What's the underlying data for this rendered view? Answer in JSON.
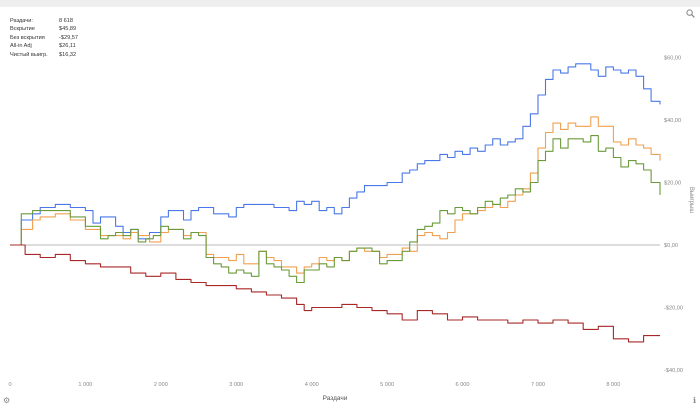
{
  "stats": [
    {
      "label": "Раздачи:",
      "value": "8 618"
    },
    {
      "label": "Вскрытие",
      "value": "$45,89"
    },
    {
      "label": "Без вскрытия",
      "value": "-$29,57"
    },
    {
      "label": "All-in Adj",
      "value": "$26,11"
    },
    {
      "label": "Чистый выигр.",
      "value": "$16,32"
    }
  ],
  "chart_data": {
    "type": "line",
    "xlabel": "Раздачи",
    "ylabel": "Выигрыш",
    "xlim": [
      0,
      8618
    ],
    "ylim": [
      -40,
      60
    ],
    "x_ticks": [
      {
        "v": 0,
        "label": "0"
      },
      {
        "v": 1000,
        "label": "1 000"
      },
      {
        "v": 2000,
        "label": "2 000"
      },
      {
        "v": 3000,
        "label": "3 000"
      },
      {
        "v": 4000,
        "label": "4 000"
      },
      {
        "v": 5000,
        "label": "5 000"
      },
      {
        "v": 6000,
        "label": "6 000"
      },
      {
        "v": 7000,
        "label": "7 000"
      },
      {
        "v": 8000,
        "label": "8 000"
      }
    ],
    "y_ticks": [
      {
        "v": 60,
        "label": "$60,00"
      },
      {
        "v": 40,
        "label": "$40,00"
      },
      {
        "v": 20,
        "label": "$20,00"
      },
      {
        "v": 0,
        "label": "$0,00"
      },
      {
        "v": -20,
        "label": "-$20,00"
      },
      {
        "v": -40,
        "label": "-$40,00"
      }
    ],
    "series": [
      {
        "color": "#4a78e8",
        "points": [
          [
            0,
            0
          ],
          [
            150,
            8
          ],
          [
            300,
            10
          ],
          [
            400,
            12
          ],
          [
            600,
            13
          ],
          [
            800,
            12
          ],
          [
            1000,
            11
          ],
          [
            1100,
            7
          ],
          [
            1200,
            9
          ],
          [
            1400,
            6
          ],
          [
            1500,
            4
          ],
          [
            1600,
            5
          ],
          [
            1700,
            2
          ],
          [
            1850,
            4
          ],
          [
            2000,
            9
          ],
          [
            2100,
            11
          ],
          [
            2300,
            8
          ],
          [
            2400,
            11
          ],
          [
            2500,
            12
          ],
          [
            2700,
            10
          ],
          [
            2800,
            10
          ],
          [
            2900,
            9
          ],
          [
            3000,
            12
          ],
          [
            3100,
            13
          ],
          [
            3300,
            13
          ],
          [
            3500,
            12
          ],
          [
            3700,
            11
          ],
          [
            3800,
            14
          ],
          [
            3900,
            13
          ],
          [
            4000,
            14
          ],
          [
            4100,
            11
          ],
          [
            4200,
            12
          ],
          [
            4300,
            10
          ],
          [
            4400,
            12
          ],
          [
            4500,
            15
          ],
          [
            4600,
            17
          ],
          [
            4700,
            19
          ],
          [
            4800,
            19
          ],
          [
            4900,
            19
          ],
          [
            5000,
            20
          ],
          [
            5100,
            20
          ],
          [
            5200,
            23
          ],
          [
            5300,
            24
          ],
          [
            5400,
            26
          ],
          [
            5500,
            27
          ],
          [
            5600,
            27
          ],
          [
            5700,
            29
          ],
          [
            5800,
            28
          ],
          [
            5900,
            30
          ],
          [
            6000,
            29
          ],
          [
            6100,
            31
          ],
          [
            6200,
            30
          ],
          [
            6300,
            32
          ],
          [
            6400,
            34
          ],
          [
            6500,
            32
          ],
          [
            6600,
            33
          ],
          [
            6700,
            34
          ],
          [
            6800,
            38
          ],
          [
            6900,
            42
          ],
          [
            7000,
            48
          ],
          [
            7100,
            53
          ],
          [
            7200,
            56
          ],
          [
            7300,
            55
          ],
          [
            7400,
            57
          ],
          [
            7500,
            58
          ],
          [
            7600,
            58
          ],
          [
            7700,
            56
          ],
          [
            7800,
            54
          ],
          [
            7900,
            57
          ],
          [
            8000,
            56
          ],
          [
            8100,
            55
          ],
          [
            8200,
            56
          ],
          [
            8300,
            54
          ],
          [
            8400,
            50
          ],
          [
            8500,
            46
          ],
          [
            8618,
            45
          ]
        ]
      },
      {
        "color": "#f0a050",
        "points": [
          [
            0,
            0
          ],
          [
            150,
            5
          ],
          [
            300,
            8
          ],
          [
            400,
            9
          ],
          [
            600,
            10
          ],
          [
            800,
            8
          ],
          [
            1000,
            5
          ],
          [
            1200,
            3
          ],
          [
            1400,
            3
          ],
          [
            1500,
            2
          ],
          [
            1600,
            4
          ],
          [
            1700,
            3
          ],
          [
            1850,
            1
          ],
          [
            2000,
            4
          ],
          [
            2100,
            5
          ],
          [
            2300,
            3
          ],
          [
            2400,
            4
          ],
          [
            2500,
            4
          ],
          [
            2600,
            -3
          ],
          [
            2700,
            -4
          ],
          [
            2800,
            -4
          ],
          [
            2900,
            -5
          ],
          [
            3000,
            -3
          ],
          [
            3100,
            -6
          ],
          [
            3200,
            -6
          ],
          [
            3300,
            -2
          ],
          [
            3400,
            -4
          ],
          [
            3500,
            -5
          ],
          [
            3600,
            -7
          ],
          [
            3700,
            -7
          ],
          [
            3800,
            -9
          ],
          [
            3900,
            -7
          ],
          [
            4000,
            -6
          ],
          [
            4100,
            -4
          ],
          [
            4200,
            -5
          ],
          [
            4300,
            -4
          ],
          [
            4400,
            -5
          ],
          [
            4500,
            -2
          ],
          [
            4600,
            -1
          ],
          [
            4700,
            -2
          ],
          [
            4800,
            -2
          ],
          [
            4900,
            -4
          ],
          [
            5000,
            -3
          ],
          [
            5200,
            -1
          ],
          [
            5300,
            -2
          ],
          [
            5400,
            3
          ],
          [
            5500,
            4
          ],
          [
            5600,
            3
          ],
          [
            5700,
            2
          ],
          [
            5800,
            4
          ],
          [
            5900,
            8
          ],
          [
            6000,
            10
          ],
          [
            6100,
            10
          ],
          [
            6200,
            11
          ],
          [
            6300,
            12
          ],
          [
            6400,
            13
          ],
          [
            6500,
            12
          ],
          [
            6600,
            14
          ],
          [
            6700,
            16
          ],
          [
            6800,
            18
          ],
          [
            6900,
            23
          ],
          [
            7000,
            31
          ],
          [
            7100,
            36
          ],
          [
            7200,
            39
          ],
          [
            7300,
            37
          ],
          [
            7400,
            39
          ],
          [
            7500,
            38
          ],
          [
            7600,
            38
          ],
          [
            7700,
            41
          ],
          [
            7800,
            38
          ],
          [
            7900,
            38
          ],
          [
            8000,
            33
          ],
          [
            8100,
            32
          ],
          [
            8200,
            34
          ],
          [
            8300,
            32
          ],
          [
            8400,
            31
          ],
          [
            8500,
            29
          ],
          [
            8618,
            27
          ]
        ]
      },
      {
        "color": "#6a9a3a",
        "points": [
          [
            0,
            0
          ],
          [
            150,
            10
          ],
          [
            300,
            11
          ],
          [
            400,
            11
          ],
          [
            600,
            11
          ],
          [
            800,
            9
          ],
          [
            1000,
            6
          ],
          [
            1200,
            2
          ],
          [
            1300,
            3
          ],
          [
            1400,
            4
          ],
          [
            1500,
            3
          ],
          [
            1600,
            5
          ],
          [
            1700,
            1
          ],
          [
            1800,
            2
          ],
          [
            1900,
            3
          ],
          [
            2000,
            6
          ],
          [
            2100,
            5
          ],
          [
            2300,
            2
          ],
          [
            2400,
            4
          ],
          [
            2500,
            3
          ],
          [
            2600,
            -4
          ],
          [
            2700,
            -6
          ],
          [
            2800,
            -7
          ],
          [
            2900,
            -9
          ],
          [
            3000,
            -8
          ],
          [
            3100,
            -9
          ],
          [
            3200,
            -10
          ],
          [
            3300,
            -2
          ],
          [
            3400,
            -6
          ],
          [
            3500,
            -7
          ],
          [
            3600,
            -8
          ],
          [
            3700,
            -10
          ],
          [
            3800,
            -12
          ],
          [
            3900,
            -8
          ],
          [
            4000,
            -8
          ],
          [
            4100,
            -6
          ],
          [
            4200,
            -7
          ],
          [
            4300,
            -4
          ],
          [
            4400,
            -5
          ],
          [
            4500,
            -2
          ],
          [
            4600,
            -1
          ],
          [
            4700,
            -1
          ],
          [
            4800,
            -2
          ],
          [
            4900,
            -6
          ],
          [
            5000,
            -5
          ],
          [
            5200,
            -2
          ],
          [
            5300,
            1
          ],
          [
            5400,
            5
          ],
          [
            5500,
            6
          ],
          [
            5600,
            7
          ],
          [
            5700,
            11
          ],
          [
            5800,
            10
          ],
          [
            5900,
            12
          ],
          [
            6000,
            11
          ],
          [
            6100,
            10
          ],
          [
            6200,
            12
          ],
          [
            6300,
            14
          ],
          [
            6400,
            13
          ],
          [
            6500,
            15
          ],
          [
            6600,
            16
          ],
          [
            6700,
            18
          ],
          [
            6800,
            17
          ],
          [
            6900,
            20
          ],
          [
            7000,
            27
          ],
          [
            7100,
            30
          ],
          [
            7200,
            34
          ],
          [
            7300,
            31
          ],
          [
            7400,
            34
          ],
          [
            7500,
            34
          ],
          [
            7600,
            33
          ],
          [
            7700,
            35
          ],
          [
            7800,
            30
          ],
          [
            7900,
            31
          ],
          [
            8000,
            28
          ],
          [
            8100,
            25
          ],
          [
            8200,
            27
          ],
          [
            8300,
            26
          ],
          [
            8400,
            24
          ],
          [
            8500,
            20
          ],
          [
            8618,
            16
          ]
        ]
      },
      {
        "color": "#a82828",
        "points": [
          [
            0,
            0
          ],
          [
            200,
            -3
          ],
          [
            400,
            -4
          ],
          [
            600,
            -3
          ],
          [
            800,
            -5
          ],
          [
            1000,
            -6
          ],
          [
            1200,
            -7
          ],
          [
            1400,
            -7
          ],
          [
            1600,
            -9
          ],
          [
            1800,
            -10
          ],
          [
            2000,
            -9
          ],
          [
            2200,
            -11
          ],
          [
            2400,
            -12
          ],
          [
            2600,
            -13
          ],
          [
            2800,
            -13
          ],
          [
            3000,
            -14
          ],
          [
            3200,
            -15
          ],
          [
            3400,
            -16
          ],
          [
            3600,
            -17
          ],
          [
            3800,
            -19
          ],
          [
            3900,
            -21
          ],
          [
            4000,
            -20
          ],
          [
            4200,
            -20
          ],
          [
            4400,
            -19
          ],
          [
            4600,
            -20
          ],
          [
            4800,
            -21
          ],
          [
            5000,
            -22
          ],
          [
            5200,
            -24
          ],
          [
            5400,
            -21
          ],
          [
            5600,
            -22
          ],
          [
            5800,
            -24
          ],
          [
            6000,
            -23
          ],
          [
            6200,
            -24
          ],
          [
            6400,
            -24
          ],
          [
            6600,
            -25
          ],
          [
            6800,
            -24
          ],
          [
            7000,
            -25
          ],
          [
            7200,
            -24
          ],
          [
            7400,
            -25
          ],
          [
            7600,
            -27
          ],
          [
            7800,
            -26
          ],
          [
            8000,
            -30
          ],
          [
            8200,
            -31
          ],
          [
            8400,
            -29
          ],
          [
            8618,
            -29
          ]
        ]
      }
    ]
  }
}
